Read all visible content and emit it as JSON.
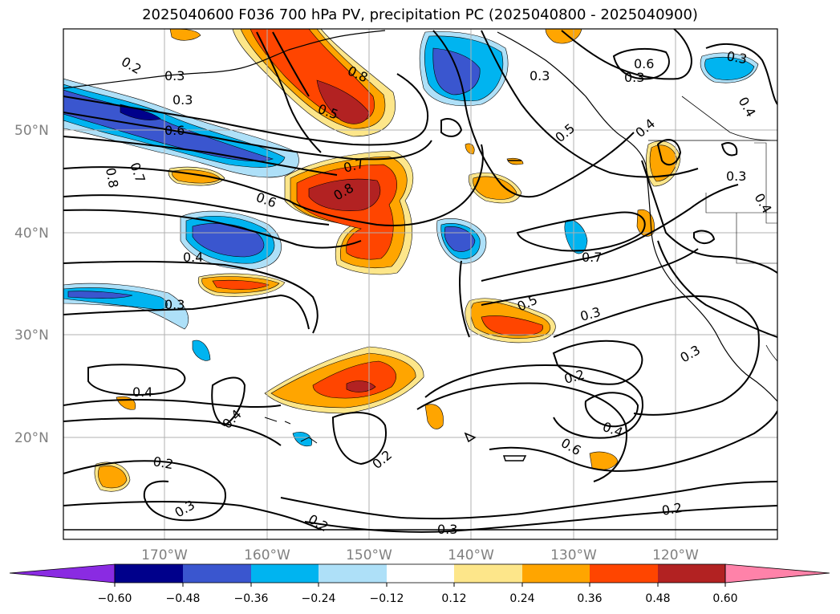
{
  "title": "2025040600 F036 700 hPa PV, precipitation PC (2025040800 - 2025040900)",
  "map": {
    "lat_labels": [
      "50°N",
      "40°N",
      "30°N",
      "20°N"
    ],
    "lon_labels": [
      "170°W",
      "160°W",
      "150°W",
      "140°W",
      "130°W",
      "120°W"
    ],
    "contour_labels": [
      "0.2",
      "0.3",
      "0.3",
      "0.8",
      "0.5",
      "0.6",
      "0.8",
      "0.7",
      "0.7",
      "0.8",
      "0.6",
      "0.5",
      "0.4",
      "0.6",
      "0.3",
      "0.3",
      "0.4",
      "0.3",
      "0.4",
      "0.7",
      "0.4",
      "0.3",
      "0.5",
      "0.3",
      "0.2",
      "0.3",
      "0.4",
      "0.4",
      "0.4",
      "0.2",
      "0.2",
      "0.3",
      "0.2",
      "0.3",
      "0.2",
      "0.6",
      "0.3"
    ]
  },
  "colorbar": {
    "ticks": [
      "−0.60",
      "−0.48",
      "−0.36",
      "−0.24",
      "−0.12",
      "0.12",
      "0.24",
      "0.36",
      "0.48",
      "0.60"
    ],
    "colors": [
      "#8a2be2",
      "#00008b",
      "#3a56cf",
      "#00b4f0",
      "#aee0f8",
      "#ffffff",
      "#fde68a",
      "#ffa500",
      "#ff4500",
      "#b22222",
      "#ff82a9"
    ]
  }
}
